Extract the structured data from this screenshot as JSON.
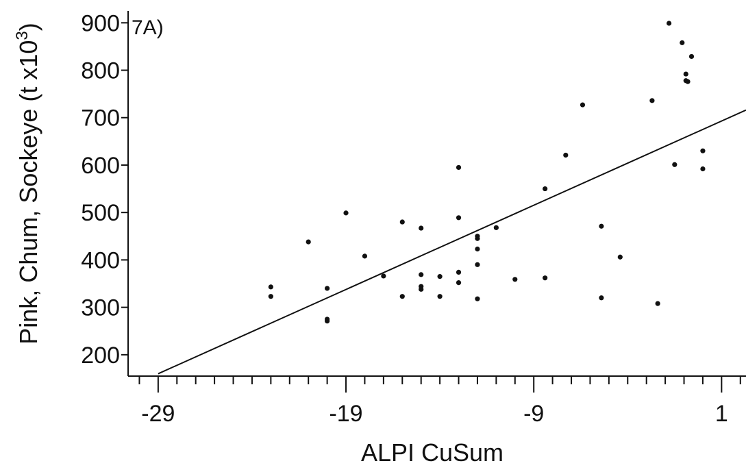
{
  "chart_data": {
    "type": "scatter",
    "panel_label": "7A)",
    "xlabel": "ALPI CuSum",
    "ylabel": "Pink, Chum, Sockeye (t x10",
    "ylabel_superscript": "3",
    "ylabel_close": ")",
    "xlim": [
      -30.6,
      2.3
    ],
    "ylim": [
      155,
      925
    ],
    "x_major_ticks": [
      -29,
      -19,
      -9,
      1
    ],
    "x_tick_labels": [
      "-29",
      "-19",
      "-9",
      "1"
    ],
    "x_minor_step": 1,
    "y_ticks": [
      200,
      300,
      400,
      500,
      600,
      700,
      800,
      900
    ],
    "y_tick_labels": [
      "200",
      "300",
      "400",
      "500",
      "600",
      "700",
      "800",
      "900"
    ],
    "points": [
      {
        "x": -23,
        "y": 343
      },
      {
        "x": -23,
        "y": 323
      },
      {
        "x": -21,
        "y": 438
      },
      {
        "x": -20,
        "y": 340
      },
      {
        "x": -20,
        "y": 275
      },
      {
        "x": -20,
        "y": 271
      },
      {
        "x": -19,
        "y": 499
      },
      {
        "x": -18,
        "y": 408
      },
      {
        "x": -17,
        "y": 366
      },
      {
        "x": -16,
        "y": 480
      },
      {
        "x": -16,
        "y": 323
      },
      {
        "x": -15,
        "y": 467
      },
      {
        "x": -15,
        "y": 369
      },
      {
        "x": -15,
        "y": 344
      },
      {
        "x": -15,
        "y": 338
      },
      {
        "x": -14,
        "y": 365
      },
      {
        "x": -14,
        "y": 323
      },
      {
        "x": -13,
        "y": 595
      },
      {
        "x": -13,
        "y": 489
      },
      {
        "x": -13,
        "y": 374
      },
      {
        "x": -13,
        "y": 352
      },
      {
        "x": -12,
        "y": 450
      },
      {
        "x": -12,
        "y": 445
      },
      {
        "x": -12,
        "y": 423
      },
      {
        "x": -12,
        "y": 390
      },
      {
        "x": -12,
        "y": 318
      },
      {
        "x": -11,
        "y": 468
      },
      {
        "x": -10,
        "y": 359
      },
      {
        "x": -8.4,
        "y": 550
      },
      {
        "x": -8.4,
        "y": 362
      },
      {
        "x": -7.3,
        "y": 621
      },
      {
        "x": -6.4,
        "y": 727
      },
      {
        "x": -5.4,
        "y": 471
      },
      {
        "x": -5.4,
        "y": 320
      },
      {
        "x": -4.4,
        "y": 406
      },
      {
        "x": -2.7,
        "y": 736
      },
      {
        "x": -2.4,
        "y": 308
      },
      {
        "x": -1.8,
        "y": 899
      },
      {
        "x": -1.5,
        "y": 601
      },
      {
        "x": -1.1,
        "y": 858
      },
      {
        "x": -0.9,
        "y": 792
      },
      {
        "x": -0.9,
        "y": 778
      },
      {
        "x": -0.8,
        "y": 776
      },
      {
        "x": -0.6,
        "y": 829
      },
      {
        "x": 0.0,
        "y": 630
      },
      {
        "x": 0.0,
        "y": 592
      }
    ],
    "fit_line": [
      {
        "x": -29.0,
        "y": 160
      },
      {
        "x": 2.3,
        "y": 716
      }
    ],
    "grid": false,
    "legend": "none"
  }
}
